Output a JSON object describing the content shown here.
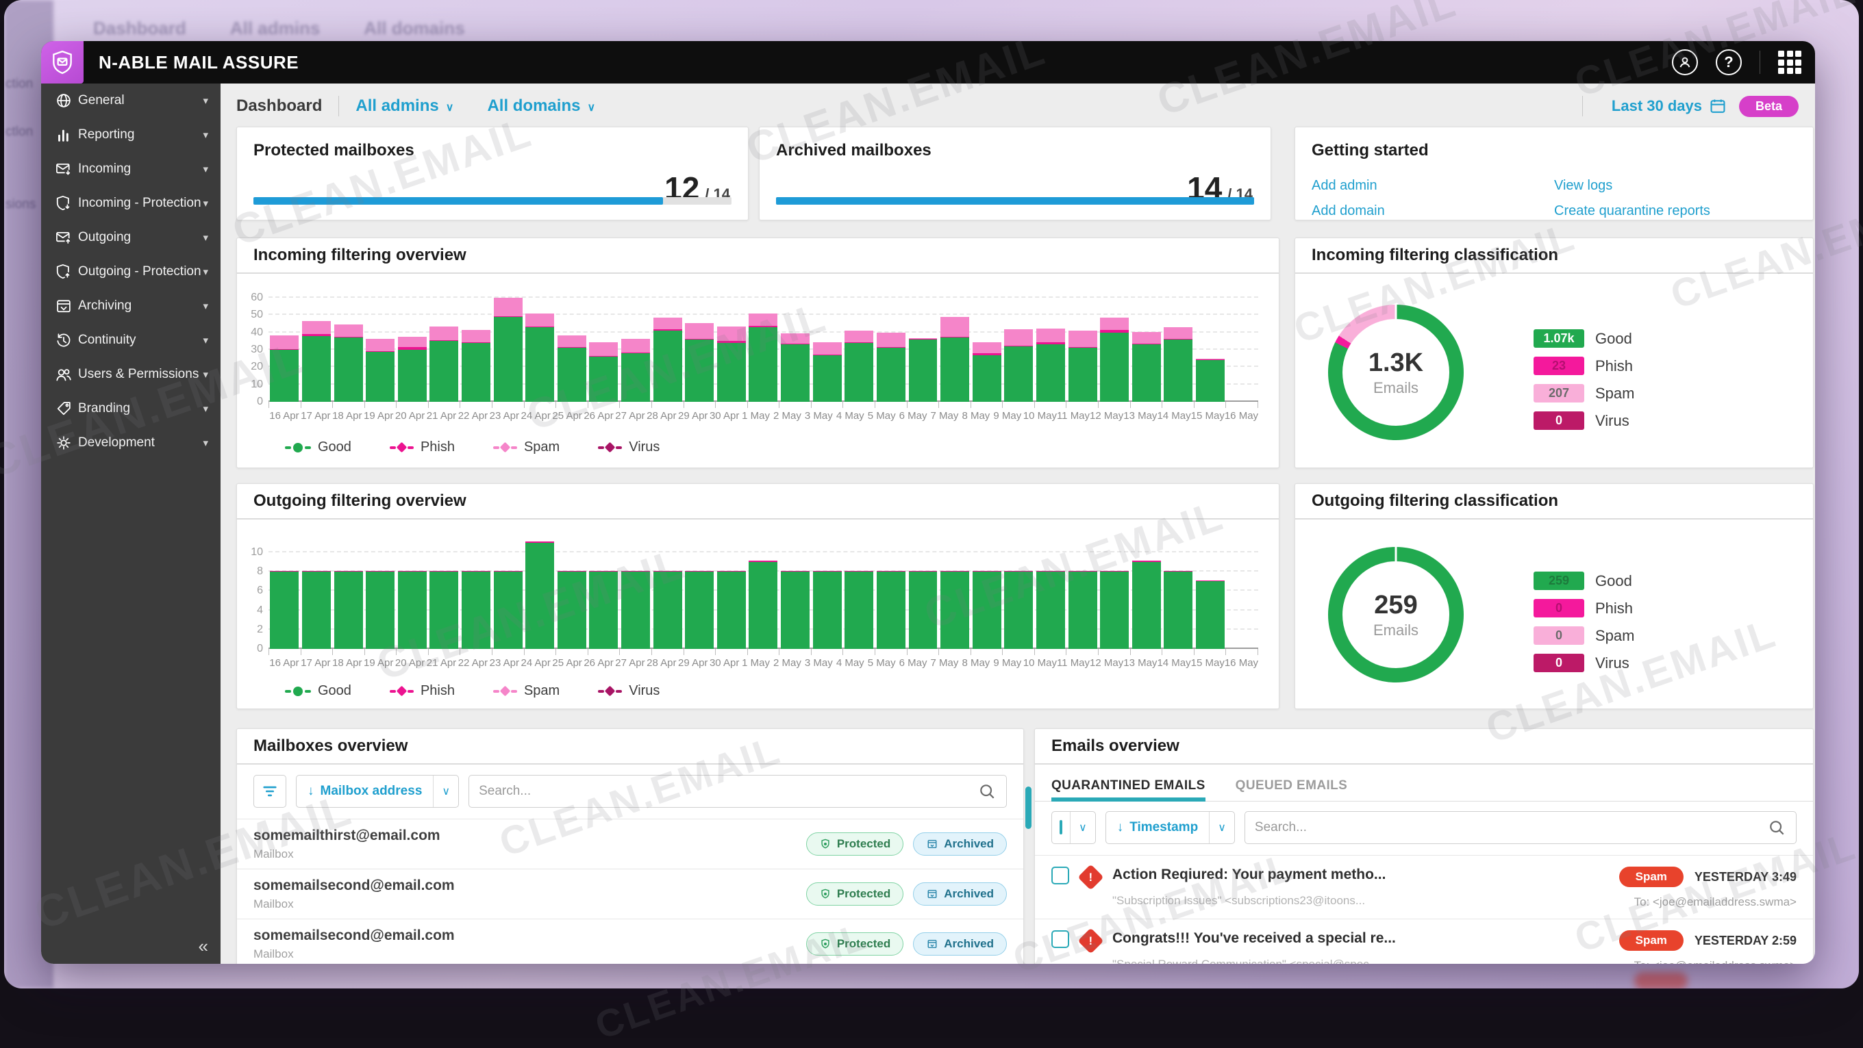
{
  "watermark": "CLEAN.EMAIL",
  "background": {
    "breadcrumb": "Dashboard",
    "admin_filter": "All admins",
    "domain_filter": "All domains",
    "fragments": [
      "ction",
      "ctlon",
      "sions"
    ]
  },
  "app": {
    "title": "N-ABLE MAIL ASSURE"
  },
  "sidebar": {
    "items": [
      {
        "label": "General",
        "icon": "globe"
      },
      {
        "label": "Reporting",
        "icon": "bar-chart"
      },
      {
        "label": "Incoming",
        "icon": "mail-in"
      },
      {
        "label": "Incoming - Protection",
        "icon": "shield-in"
      },
      {
        "label": "Outgoing",
        "icon": "mail-out"
      },
      {
        "label": "Outgoing - Protection",
        "icon": "shield-out"
      },
      {
        "label": "Archiving",
        "icon": "archive"
      },
      {
        "label": "Continuity",
        "icon": "history"
      },
      {
        "label": "Users & Permissions",
        "icon": "users"
      },
      {
        "label": "Branding",
        "icon": "tag"
      },
      {
        "label": "Development",
        "icon": "gear"
      }
    ],
    "chevron": "▾",
    "collapse_glyph": "«"
  },
  "toolbar": {
    "breadcrumb": "Dashboard",
    "admin_filter": "All admins",
    "domain_filter": "All domains",
    "date_range": "Last 30 days",
    "beta_badge": "Beta"
  },
  "cards": {
    "protected": {
      "title": "Protected mailboxes",
      "value": "12",
      "total": "/ 14",
      "progress_pct": 85.7
    },
    "archived": {
      "title": "Archived mailboxes",
      "value": "14",
      "total": "/ 14",
      "progress_pct": 100
    },
    "getting_started": {
      "title": "Getting started",
      "links_left": [
        "Add admin",
        "Add domain"
      ],
      "links_right": [
        "View logs",
        "Create quarantine reports"
      ]
    }
  },
  "chart_data": [
    {
      "id": "incoming",
      "type": "bar",
      "stacked": true,
      "title": "Incoming filtering overview",
      "categories": [
        "16 Apr",
        "17 Apr",
        "18 Apr",
        "19 Apr",
        "20 Apr",
        "21 Apr",
        "22 Apr",
        "23 Apr",
        "24 Apr",
        "25 Apr",
        "26 Apr",
        "27 Apr",
        "28 Apr",
        "29 Apr",
        "30 Apr",
        "1 May",
        "2 May",
        "3 May",
        "4 May",
        "5 May",
        "6 May",
        "7 May",
        "8 May",
        "9 May",
        "10 May",
        "11 May",
        "12 May",
        "13 May",
        "14 May",
        "15 May",
        "16 May"
      ],
      "series": [
        {
          "name": "Good",
          "color": "#21a94f",
          "marker": "dot",
          "values": [
            30,
            38,
            37,
            29,
            30,
            35,
            34,
            49,
            43,
            31,
            26,
            28,
            41,
            36,
            34,
            43,
            33,
            27,
            34,
            31,
            36,
            37,
            27,
            32,
            33,
            31,
            40,
            33,
            36,
            24,
            0
          ]
        },
        {
          "name": "Phish",
          "color": "#ec1390",
          "marker": "dia",
          "values": [
            0.4,
            1,
            0.5,
            0.4,
            1.4,
            0.4,
            0.4,
            0.5,
            0.5,
            0.4,
            0.4,
            0.4,
            1,
            0.5,
            1,
            1,
            0.4,
            0.4,
            0.4,
            0.5,
            0.3,
            0.4,
            1.2,
            0.4,
            1.4,
            0.4,
            1.4,
            0.4,
            0.4,
            0.3,
            0
          ]
        },
        {
          "name": "Spam",
          "color": "#f585c9",
          "marker": "dia",
          "values": [
            8,
            7.5,
            7,
            7,
            6,
            8,
            7,
            10.5,
            7.5,
            7,
            8,
            8,
            6.5,
            9,
            8.5,
            7,
            6,
            7,
            6.5,
            8.5,
            0.5,
            11.5,
            6,
            9.5,
            8,
            9.5,
            7,
            7,
            6.5,
            0.5,
            0
          ]
        },
        {
          "name": "Virus",
          "color": "#a81465",
          "marker": "dia",
          "values": [
            0,
            0,
            0,
            0,
            0,
            0,
            0,
            0,
            0,
            0,
            0,
            0,
            0,
            0,
            0,
            0,
            0,
            0,
            0,
            0,
            0,
            0,
            0,
            0,
            0,
            0,
            0,
            0,
            0,
            0,
            0
          ]
        }
      ],
      "ylim": [
        0,
        60
      ],
      "yticks": [
        0,
        10,
        20,
        30,
        40,
        50,
        60
      ],
      "grid": true,
      "legend_position": "bottom"
    },
    {
      "id": "outgoing",
      "type": "bar",
      "stacked": true,
      "title": "Outgoing filtering overview",
      "categories": [
        "16 Apr",
        "17 Apr",
        "18 Apr",
        "19 Apr",
        "20 Apr",
        "21 Apr",
        "22 Apr",
        "23 Apr",
        "24 Apr",
        "25 Apr",
        "26 Apr",
        "27 Apr",
        "28 Apr",
        "29 Apr",
        "30 Apr",
        "1 May",
        "2 May",
        "3 May",
        "4 May",
        "5 May",
        "6 May",
        "7 May",
        "8 May",
        "9 May",
        "10 May",
        "11 May",
        "12 May",
        "13 May",
        "14 May",
        "15 May",
        "16 May"
      ],
      "series": [
        {
          "name": "Good",
          "color": "#21a94f",
          "marker": "dot",
          "values": [
            8,
            8,
            8,
            8,
            8,
            8,
            8,
            8,
            11,
            8,
            8,
            8,
            8,
            8,
            8,
            9,
            8,
            8,
            8,
            8,
            8,
            8,
            8,
            8,
            8,
            8,
            8,
            9,
            8,
            7,
            0
          ]
        },
        {
          "name": "Phish",
          "color": "#ec1390",
          "marker": "dia",
          "values": [
            0.12,
            0.12,
            0.12,
            0.12,
            0.12,
            0.12,
            0.12,
            0.12,
            0.12,
            0.12,
            0.12,
            0.12,
            0.12,
            0.12,
            0.12,
            0.12,
            0.12,
            0.12,
            0.12,
            0.12,
            0.12,
            0.12,
            0.12,
            0.12,
            0.12,
            0.12,
            0.12,
            0.12,
            0.12,
            0.12,
            0
          ]
        },
        {
          "name": "Spam",
          "color": "#f585c9",
          "marker": "dia",
          "values": [
            0,
            0,
            0,
            0,
            0,
            0,
            0,
            0,
            0,
            0,
            0,
            0,
            0,
            0,
            0,
            0,
            0,
            0,
            0,
            0,
            0,
            0,
            0,
            0,
            0,
            0,
            0,
            0,
            0,
            0,
            0
          ]
        },
        {
          "name": "Virus",
          "color": "#a81465",
          "marker": "dia",
          "values": [
            0,
            0,
            0,
            0,
            0,
            0,
            0,
            0,
            0,
            0,
            0,
            0,
            0,
            0,
            0,
            0,
            0,
            0,
            0,
            0,
            0,
            0,
            0,
            0,
            0,
            0,
            0,
            0,
            0,
            0,
            0
          ]
        }
      ],
      "ylim": [
        0,
        10
      ],
      "yticks": [
        0,
        2,
        4,
        6,
        8,
        10
      ],
      "grid": true,
      "legend_position": "bottom"
    },
    {
      "id": "incoming_class",
      "type": "pie",
      "title": "Incoming filtering classification",
      "center_value": "1.3K",
      "center_label": "Emails",
      "segments": [
        {
          "label": "Good",
          "value_label": "1.07k",
          "value": 1070,
          "pct": 82.3,
          "color": "#21a94f",
          "badge_text": "#ffffff"
        },
        {
          "label": "Phish",
          "value_label": "23",
          "value": 23,
          "pct": 1.8,
          "color": "#f4199c",
          "badge_text": "#b50f71"
        },
        {
          "label": "Spam",
          "value_label": "207",
          "value": 207,
          "pct": 15.9,
          "color": "#f9afd9",
          "badge_text": "#6a6a6a"
        },
        {
          "label": "Virus",
          "value_label": "0",
          "value": 0,
          "pct": 0,
          "color": "#bc1a67",
          "badge_text": "#ffffff"
        }
      ]
    },
    {
      "id": "outgoing_class",
      "type": "pie",
      "title": "Outgoing filtering classification",
      "center_value": "259",
      "center_label": "Emails",
      "segments": [
        {
          "label": "Good",
          "value_label": "259",
          "value": 259,
          "pct": 100,
          "color": "#21a94f",
          "badge_text": "#1d7a3c"
        },
        {
          "label": "Phish",
          "value_label": "0",
          "value": 0,
          "pct": 0,
          "color": "#f4199c",
          "badge_text": "#b50f71"
        },
        {
          "label": "Spam",
          "value_label": "0",
          "value": 0,
          "pct": 0,
          "color": "#f9afd9",
          "badge_text": "#6a6a6a"
        },
        {
          "label": "Virus",
          "value_label": "0",
          "value": 0,
          "pct": 0,
          "color": "#bc1a67",
          "badge_text": "#ffffff"
        }
      ]
    }
  ],
  "mailboxes": {
    "title": "Mailboxes overview",
    "sort_arrow": "↓",
    "sort_label": "Mailbox address",
    "search_placeholder": "Search...",
    "rows": [
      {
        "email": "somemailthirst@email.com",
        "type": "Mailbox",
        "badges": [
          "Protected",
          "Archived"
        ]
      },
      {
        "email": "somemailsecond@email.com",
        "type": "Mailbox",
        "badges": [
          "Protected",
          "Archived"
        ]
      },
      {
        "email": "somemailsecond@email.com",
        "type": "Mailbox",
        "badges": [
          "Protected",
          "Archived"
        ]
      }
    ]
  },
  "emails": {
    "title": "Emails overview",
    "tabs": [
      "QUARANTINED EMAILS",
      "QUEUED EMAILS"
    ],
    "active_tab": 0,
    "sort_arrow": "↓",
    "sort_label": "Timestamp",
    "search_placeholder": "Search...",
    "to_label": "To:",
    "rows": [
      {
        "subject": "Action Reqiured: Your payment metho...",
        "from": "\"Subscription Issues\" <subscriptions23@itoons...",
        "badge": "Spam",
        "time": "YESTERDAY 3:49",
        "to": "<joe@emailaddress.swma>"
      },
      {
        "subject": "Congrats!!! You've received a special re...",
        "from": "\"Special Reward Communication\" <special@spec...",
        "badge": "Spam",
        "time": "YESTERDAY 2:59",
        "to": "<joe@emailaddress.swma>"
      }
    ]
  },
  "colors": {
    "accent_link": "#1f9fce",
    "tab_accent": "#2aa9b7",
    "progress_blue": "#1e9bd7",
    "good_green": "#21a94f",
    "phish_pink": "#ec1390",
    "spam_pink": "#f585c9",
    "virus_magenta": "#a81465",
    "spam_badge_red": "#e8432c",
    "beta_magenta": "#d63fc9",
    "sidebar_bg": "#3b3b3b",
    "header_bg": "#0e0e0e",
    "logo_purple": "#c757e2"
  }
}
